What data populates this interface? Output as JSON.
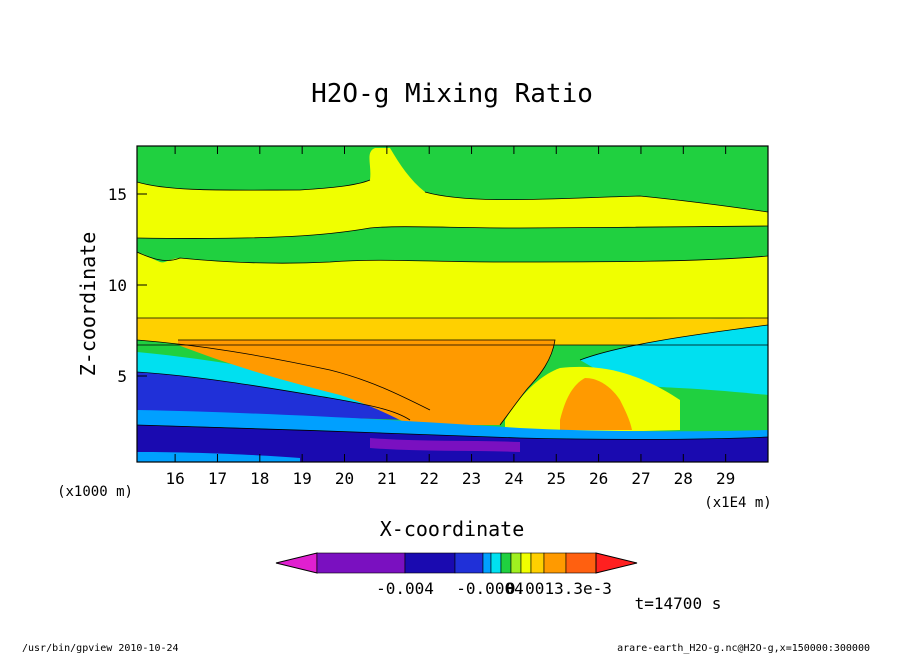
{
  "chart_data": {
    "type": "heatmap",
    "title": "H2O-g Mixing Ratio",
    "xlabel": "X-coordinate",
    "ylabel": "Z-coordinate",
    "x_units": "(x1E4 m)",
    "y_units": "(x1000 m)",
    "x_ticks": [
      "16",
      "17",
      "18",
      "19",
      "20",
      "21",
      "22",
      "23",
      "24",
      "25",
      "26",
      "27",
      "28",
      "29"
    ],
    "y_ticks": [
      "5",
      "10",
      "15"
    ],
    "xlim": [
      15.1,
      30.0
    ],
    "ylim": [
      0.2,
      17.7
    ],
    "grid": false,
    "colorbar": {
      "colors": [
        "#e020d0",
        "#7a10c0",
        "#1a0ab0",
        "#2030d8",
        "#00a0ff",
        "#00e0f0",
        "#20d040",
        "#a0f020",
        "#f0ff00",
        "#ffd000",
        "#ff9a00",
        "#ff6010",
        "#ff2020"
      ],
      "labels": [
        "-0.004",
        "-0.0004",
        "0.001",
        "3.3e-3"
      ]
    },
    "time_label": "t=14700 s",
    "footer_left": "/usr/bin/gpview  2010-10-24",
    "footer_right": "arare-earth_H2O-g.nc@H2O-g,x=150000:300000"
  }
}
